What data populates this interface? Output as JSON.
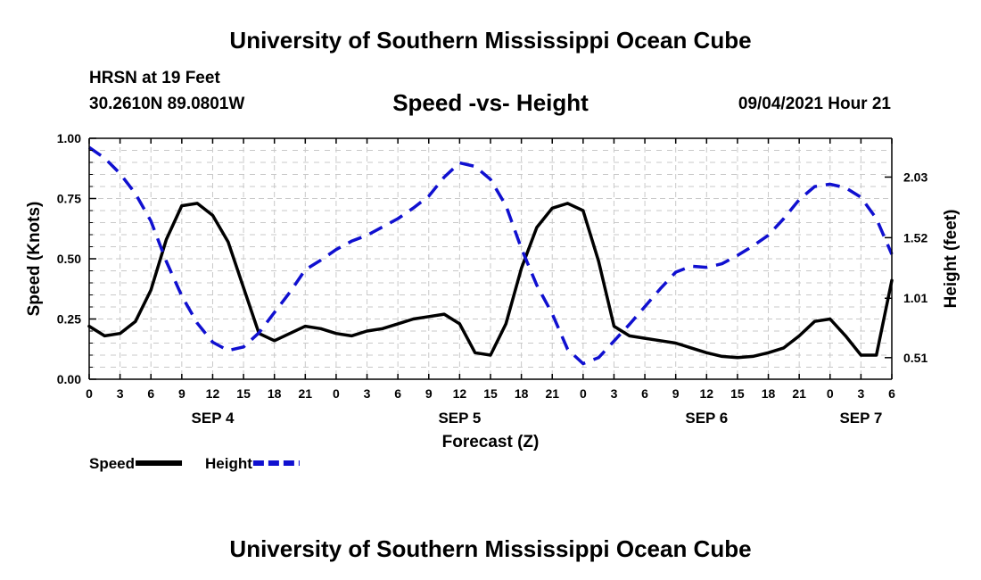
{
  "header": {
    "title": "University of Southern Mississippi Ocean Cube",
    "station": "HRSN at 19 Feet",
    "coordinates": "30.2610N  89.0801W",
    "subtitle": "Speed -vs- Height",
    "datetime": "09/04/2021 Hour 21"
  },
  "footer": {
    "title": "University of Southern Mississippi Ocean Cube"
  },
  "chart_data": {
    "type": "line",
    "title": "Speed -vs- Height",
    "xlabel": "Forecast (Z)",
    "ylabel": "Speed (Knots)",
    "y2label": "Height (feet)",
    "x_unit": "hours since SEP 4 00Z",
    "xlim": [
      0,
      78
    ],
    "ylim": [
      0,
      1
    ],
    "y2lim": [
      0.3283,
      2.3564
    ],
    "x_tick_values": [
      0,
      3,
      6,
      9,
      12,
      15,
      18,
      21,
      24,
      27,
      30,
      33,
      36,
      39,
      42,
      45,
      48,
      51,
      54,
      57,
      60,
      63,
      66,
      69,
      72,
      75,
      78
    ],
    "x_tick_labels": [
      "0",
      "3",
      "6",
      "9",
      "12",
      "15",
      "18",
      "21",
      "0",
      "3",
      "6",
      "9",
      "12",
      "15",
      "18",
      "21",
      "0",
      "3",
      "6",
      "9",
      "12",
      "15",
      "18",
      "21",
      "0",
      "3",
      "6"
    ],
    "date_labels": [
      {
        "label": "SEP 4",
        "x": 12
      },
      {
        "label": "SEP 5",
        "x": 36
      },
      {
        "label": "SEP 6",
        "x": 60
      },
      {
        "label": "SEP 7",
        "x": 75
      }
    ],
    "y_ticks": [
      0.0,
      0.25,
      0.5,
      0.75,
      1.0
    ],
    "y_tick_labels": [
      "0.00",
      "0.25",
      "0.50",
      "0.75",
      "1.00"
    ],
    "y2_ticks": [
      0.51,
      1.01,
      1.52,
      2.03
    ],
    "y2_tick_labels": [
      "0.51",
      "1.01",
      "1.52",
      "2.03"
    ],
    "grid": true,
    "legend": "bottom-left",
    "series": [
      {
        "name": "Speed",
        "axis": "left",
        "color": "#000000",
        "style": "solid",
        "x": [
          0,
          1.5,
          3,
          4.5,
          6,
          7.5,
          9,
          10.5,
          12,
          13.5,
          15,
          16.5,
          18,
          19.5,
          21,
          22.5,
          24,
          25.5,
          27,
          28.5,
          30,
          31.5,
          33,
          34.5,
          36,
          37.5,
          39,
          40.5,
          42,
          43.5,
          45,
          46.5,
          48,
          49.5,
          51,
          52.5,
          54,
          55.5,
          57,
          58.5,
          60,
          61.5,
          63,
          64.5,
          66,
          67.5,
          69,
          70.5,
          72,
          73.5,
          75,
          76.5,
          78
        ],
        "y": [
          0.22,
          0.18,
          0.19,
          0.24,
          0.37,
          0.58,
          0.72,
          0.73,
          0.68,
          0.57,
          0.38,
          0.19,
          0.16,
          0.19,
          0.22,
          0.21,
          0.19,
          0.18,
          0.2,
          0.21,
          0.23,
          0.25,
          0.26,
          0.27,
          0.23,
          0.11,
          0.1,
          0.23,
          0.46,
          0.63,
          0.71,
          0.73,
          0.7,
          0.49,
          0.22,
          0.18,
          0.17,
          0.16,
          0.15,
          0.13,
          0.11,
          0.095,
          0.09,
          0.095,
          0.11,
          0.13,
          0.18,
          0.24,
          0.25,
          0.18,
          0.1,
          0.1,
          0.41
        ]
      },
      {
        "name": "Height",
        "axis": "right",
        "color": "#1010d0",
        "style": "dashed",
        "x": [
          0,
          1.5,
          3,
          4.5,
          6,
          7.5,
          9,
          10.5,
          12,
          13.5,
          15,
          16.5,
          18,
          19.5,
          21,
          22.5,
          24,
          25.5,
          27,
          28.5,
          30,
          31.5,
          33,
          34.5,
          36,
          37.5,
          39,
          40.5,
          42,
          43.5,
          45,
          46.5,
          48,
          49.5,
          51,
          52.5,
          54,
          55.5,
          57,
          58.5,
          60,
          61.5,
          63,
          64.5,
          66,
          67.5,
          69,
          70.5,
          72,
          73.5,
          75,
          76.5,
          78
        ],
        "y": [
          2.28,
          2.19,
          2.06,
          1.89,
          1.66,
          1.32,
          1.03,
          0.8,
          0.64,
          0.57,
          0.6,
          0.72,
          0.89,
          1.06,
          1.25,
          1.33,
          1.42,
          1.49,
          1.54,
          1.61,
          1.68,
          1.77,
          1.87,
          2.03,
          2.15,
          2.12,
          2.01,
          1.79,
          1.43,
          1.12,
          0.88,
          0.58,
          0.46,
          0.51,
          0.65,
          0.79,
          0.94,
          1.09,
          1.23,
          1.28,
          1.27,
          1.3,
          1.37,
          1.45,
          1.54,
          1.68,
          1.84,
          1.95,
          1.97,
          1.94,
          1.86,
          1.68,
          1.38
        ]
      }
    ]
  }
}
